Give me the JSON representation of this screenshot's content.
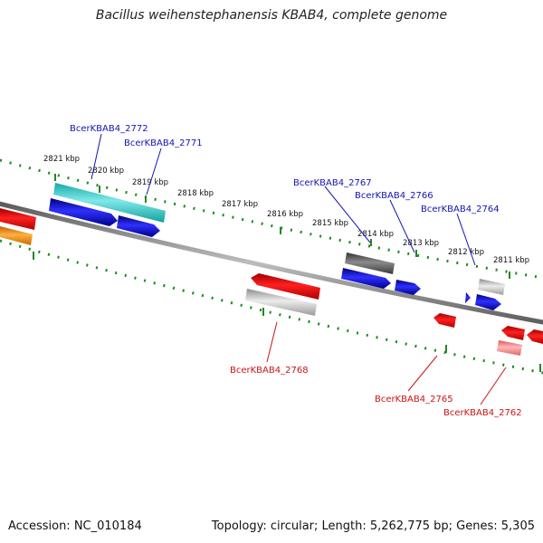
{
  "title": "Bacillus weihenstephanensis KBAB4, complete genome",
  "footer": {
    "accession": "Accession: NC_010184",
    "summary": "Topology: circular; Length: 5,262,775 bp; Genes: 5,305"
  },
  "colors": {
    "backbone": "#808080",
    "ticks": "#1f8a1f",
    "label_blue": "#1414b4",
    "label_red": "#cc1414"
  },
  "ticks": [
    "2821 kbp",
    "2820 kbp",
    "2819 kbp",
    "2818 kbp",
    "2817 kbp",
    "2816 kbp",
    "2815 kbp",
    "2814 kbp",
    "2813 kbp",
    "2812 kbp",
    "2811 kbp"
  ],
  "genes": [
    {
      "name": "BcerKBAB4_2772",
      "color": "#1414b4"
    },
    {
      "name": "BcerKBAB4_2771",
      "color": "#1414b4"
    },
    {
      "name": "BcerKBAB4_2767",
      "color": "#1414b4"
    },
    {
      "name": "BcerKBAB4_2766",
      "color": "#1414b4"
    },
    {
      "name": "BcerKBAB4_2764",
      "color": "#1414b4"
    },
    {
      "name": "BcerKBAB4_2768",
      "color": "#cc1414"
    },
    {
      "name": "BcerKBAB4_2765",
      "color": "#cc1414"
    },
    {
      "name": "BcerKBAB4_2762",
      "color": "#cc1414"
    }
  ]
}
